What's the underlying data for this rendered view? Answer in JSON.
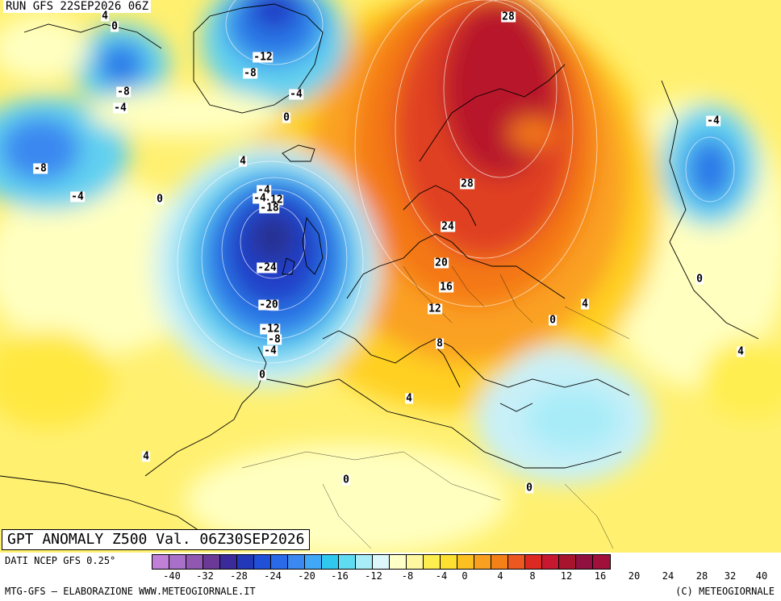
{
  "header": {
    "run": "RUN GFS 22SEP2026 06Z"
  },
  "title": {
    "valid": "GPT ANOMALY Z500 Val. 06Z30SEP2026"
  },
  "footer": {
    "source": "DATI NCEP GFS 0.25°",
    "credit_left": "MTG-GFS – ELABORAZIONE WWW.METEOGIORNALE.IT",
    "credit_right": "(C) METEOGIORNALE"
  },
  "legend": {
    "colors": [
      "#c080d8",
      "#a870c8",
      "#9058b0",
      "#6a3a96",
      "#3a2a9a",
      "#2238b8",
      "#2050d8",
      "#2a6ae8",
      "#3a88f0",
      "#40a8f6",
      "#30c8ee",
      "#60dcf2",
      "#a8ecf8",
      "#dcf8fa",
      "#ffffc8",
      "#fff8a0",
      "#ffee50",
      "#fde030",
      "#fcc020",
      "#faa020",
      "#f48018",
      "#ec5820",
      "#dc2a22",
      "#c81830",
      "#a8142e",
      "#901040",
      "#a0103a"
    ],
    "ticks": [
      "-40",
      "-32",
      "-28",
      "-24",
      "-20",
      "-16",
      "-12",
      "-8",
      "-4",
      "0",
      "4",
      "8",
      "12",
      "16",
      "20",
      "24",
      "28",
      "32",
      "40"
    ]
  },
  "contour_labels": [
    "0",
    "-12",
    "-8",
    "-8",
    "-4",
    "-4",
    "0",
    "-4",
    "-8",
    "4",
    "-4",
    "0",
    "-4",
    "-12",
    "-18",
    "-24",
    "-20",
    "-12",
    "-8",
    "-4",
    "0",
    "4",
    "0",
    "0",
    "4",
    "28",
    "28",
    "24",
    "20",
    "16",
    "12",
    "8",
    "4",
    "-4",
    "0",
    "4",
    "0",
    "4"
  ],
  "map_colors": {
    "ocean_base": "#fff070",
    "pale_yellow": "#ffffc0",
    "yellow": "#ffe840",
    "dark_yellow": "#ffd020",
    "orange": "#faa020",
    "dark_orange": "#f47818",
    "red": "#e04020",
    "dark_red": "#b8182c",
    "pale_blue": "#c8f0f8",
    "light_blue": "#60d0f0",
    "blue": "#2a7ae8",
    "dark_blue": "#2040c8",
    "navy": "#283090"
  }
}
